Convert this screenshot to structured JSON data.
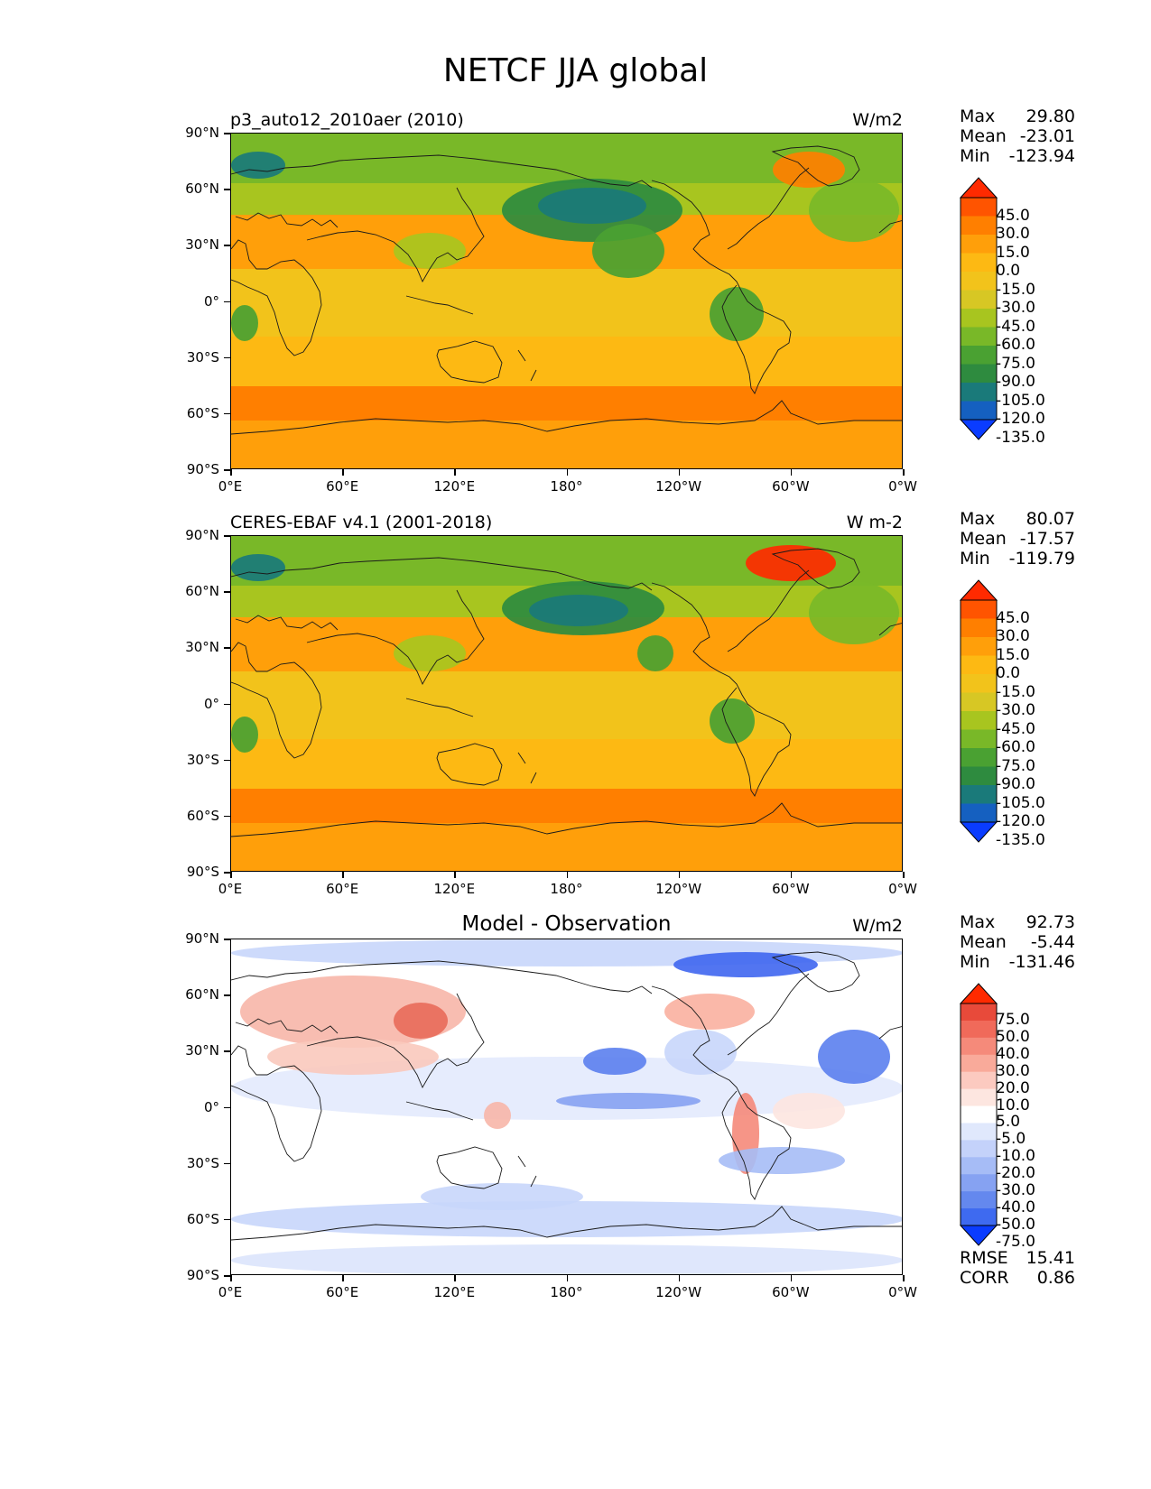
{
  "title": "NETCF JJA global",
  "lat_labels": [
    "90°N",
    "60°N",
    "30°N",
    "0°",
    "30°S",
    "60°S",
    "90°S"
  ],
  "lon_labels": [
    "0°E",
    "60°E",
    "120°E",
    "180°",
    "120°W",
    "60°W",
    "0°W"
  ],
  "panels": [
    {
      "id": "model",
      "left_title": "p3_auto12_2010aer (2010)",
      "center_title": "",
      "units": "W/m2",
      "stats": [
        {
          "label": "Max",
          "value": "29.80"
        },
        {
          "label": "Mean",
          "value": "-23.01"
        },
        {
          "label": "Min",
          "value": "-123.94"
        }
      ],
      "colorbar": {
        "labels": [
          "45.0",
          "30.0",
          "15.0",
          "0.0",
          "-15.0",
          "-30.0",
          "-45.0",
          "-60.0",
          "-75.0",
          "-90.0",
          "-105.0",
          "-120.0",
          "-135.0"
        ],
        "colors": [
          "#ff2a00",
          "#ff5400",
          "#ff7f00",
          "#ff9f0a",
          "#fdb913",
          "#f2c31b",
          "#d7c724",
          "#a8c51f",
          "#79b828",
          "#4aa132",
          "#2e8b3f",
          "#1a7a7a",
          "#1560c0",
          "#0a3cff"
        ]
      },
      "footer_stats": []
    },
    {
      "id": "obs",
      "left_title": "CERES-EBAF v4.1 (2001-2018)",
      "center_title": "",
      "units": "W m-2",
      "stats": [
        {
          "label": "Max",
          "value": "80.07"
        },
        {
          "label": "Mean",
          "value": "-17.57"
        },
        {
          "label": "Min",
          "value": "-119.79"
        }
      ],
      "colorbar": {
        "labels": [
          "45.0",
          "30.0",
          "15.0",
          "0.0",
          "-15.0",
          "-30.0",
          "-45.0",
          "-60.0",
          "-75.0",
          "-90.0",
          "-105.0",
          "-120.0",
          "-135.0"
        ],
        "colors": [
          "#ff2a00",
          "#ff5400",
          "#ff7f00",
          "#ff9f0a",
          "#fdb913",
          "#f2c31b",
          "#d7c724",
          "#a8c51f",
          "#79b828",
          "#4aa132",
          "#2e8b3f",
          "#1a7a7a",
          "#1560c0",
          "#0a3cff"
        ]
      },
      "footer_stats": []
    },
    {
      "id": "diff",
      "left_title": "",
      "center_title": "Model - Observation",
      "units": "W/m2",
      "stats": [
        {
          "label": "Max",
          "value": "92.73"
        },
        {
          "label": "Mean",
          "value": "-5.44"
        },
        {
          "label": "Min",
          "value": "-131.46"
        }
      ],
      "colorbar": {
        "labels": [
          "75.0",
          "50.0",
          "40.0",
          "30.0",
          "20.0",
          "10.0",
          "5.0",
          "-5.0",
          "-10.0",
          "-20.0",
          "-30.0",
          "-40.0",
          "-50.0",
          "-75.0"
        ],
        "colors": [
          "#ff2a00",
          "#e84a3a",
          "#f06a5a",
          "#f58a7a",
          "#f9aa9a",
          "#fccac0",
          "#fde6e0",
          "#ffffff",
          "#e0e8fc",
          "#c4d2fa",
          "#a6bcf6",
          "#86a2f2",
          "#6488ee",
          "#3e6af0",
          "#0a3cff"
        ]
      },
      "footer_stats": [
        {
          "label": "RMSE",
          "value": "15.41"
        },
        {
          "label": "CORR",
          "value": "0.86"
        }
      ]
    }
  ]
}
